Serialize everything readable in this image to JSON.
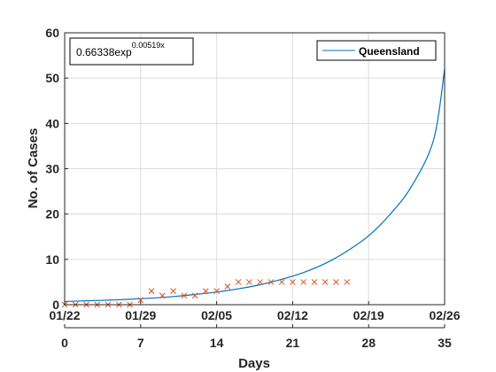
{
  "chart_data": {
    "type": "line",
    "ylabel": "No. of Cases",
    "xlabel": "Days",
    "xlim": [
      0,
      35
    ],
    "ylim": [
      0,
      60
    ],
    "grid": true,
    "yticks": [
      "0",
      "10",
      "20",
      "30",
      "40",
      "50",
      "60"
    ],
    "xticks": [
      "0",
      "7",
      "14",
      "21",
      "28",
      "35"
    ],
    "xticks_values": [
      0,
      7,
      14,
      21,
      28,
      35
    ],
    "date_ticks": [
      "01/22",
      "01/29",
      "02/05",
      "02/12",
      "02/19",
      "02/26"
    ],
    "annotation": {
      "base": "0.66338exp",
      "exponent": "0.00519x"
    },
    "legend": {
      "position": "top-right",
      "entries": [
        "Queensland"
      ]
    },
    "fit": {
      "name": "Queensland",
      "color": "#0072BD",
      "x": [
        0,
        2,
        4,
        6,
        8,
        10,
        12,
        14,
        16,
        18,
        20,
        22,
        24,
        26,
        28,
        30,
        32,
        34,
        35
      ],
      "y": [
        0.7,
        0.85,
        1.0,
        1.2,
        1.45,
        1.8,
        2.25,
        2.8,
        3.5,
        4.4,
        5.6,
        7.1,
        9.1,
        11.8,
        15.2,
        20.0,
        26.3,
        36.5,
        52.0
      ]
    },
    "observed": {
      "color": "#D95319",
      "x": [
        0,
        1,
        2,
        3,
        4,
        5,
        6,
        7,
        8,
        9,
        10,
        11,
        12,
        13,
        14,
        15,
        16,
        17,
        18,
        19,
        20,
        21,
        22,
        23,
        24,
        25,
        26
      ],
      "y": [
        0,
        0,
        0,
        0,
        0,
        0,
        0,
        1,
        3,
        2,
        3,
        2,
        2,
        3,
        3,
        4,
        5,
        5,
        5,
        5,
        5,
        5,
        5,
        5,
        5,
        5,
        5
      ]
    }
  }
}
